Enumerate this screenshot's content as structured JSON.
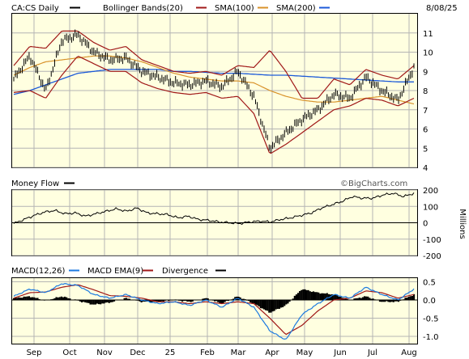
{
  "colors": {
    "panel_bg": "#ffffe0",
    "grid": "#b4b4b4",
    "price": "#000000",
    "bollinger": "#a01818",
    "sma100": "#d8922a",
    "sma200": "#1c5ad8",
    "money_flow": "#000000",
    "macd": "#1c7ae0",
    "macd_ema": "#a01818",
    "divergence": "#000000"
  },
  "header": {
    "ticker": "CA:CS Daily",
    "date": "8/08/25",
    "watermark": "©BigCharts.com"
  },
  "chart_data": [
    {
      "type": "ohlc",
      "panel": "price",
      "title": "CA:CS Daily",
      "legend": [
        "CA:CS Daily",
        "Bollinger Bands(20)",
        "SMA(100)",
        "SMA(200)"
      ],
      "x_labels": [
        "Sep",
        "Oct",
        "Nov",
        "Dec",
        "25",
        "Feb",
        "Mar",
        "Apr",
        "May",
        "Jun",
        "Jul",
        "Aug"
      ],
      "ylim": [
        4,
        12
      ],
      "y_ticks": [
        4,
        5,
        6,
        7,
        8,
        9,
        10,
        11
      ],
      "grid": true,
      "series": [
        {
          "name": "CA:CS Daily",
          "x": [
            "Aug",
            "Sep",
            "Sep",
            "Oct",
            "Oct",
            "Nov",
            "Nov",
            "Dec",
            "Dec",
            "25",
            "Jan",
            "Feb",
            "Feb",
            "Mar",
            "Mar",
            "Apr",
            "Apr",
            "Apr",
            "May",
            "May",
            "Jun",
            "Jun",
            "Jul",
            "Jul",
            "Aug",
            "Aug"
          ],
          "values": [
            8.6,
            9.8,
            8.0,
            10.6,
            10.9,
            10.0,
            9.6,
            9.7,
            9.0,
            8.7,
            8.4,
            8.3,
            8.5,
            8.2,
            9.0,
            7.7,
            5.0,
            5.8,
            6.5,
            7.0,
            7.8,
            7.6,
            8.7,
            8.0,
            7.5,
            9.2
          ]
        },
        {
          "name": "Bollinger Bands(20) upper",
          "values": [
            9.3,
            10.3,
            10.2,
            11.1,
            11.1,
            10.5,
            10.1,
            10.3,
            9.6,
            9.3,
            9.0,
            8.9,
            9.0,
            8.8,
            9.3,
            9.2,
            10.1,
            9.0,
            7.6,
            7.6,
            8.6,
            8.3,
            9.1,
            8.8,
            8.6,
            9.3
          ]
        },
        {
          "name": "Bollinger Bands(20) lower",
          "values": [
            7.9,
            8.0,
            7.6,
            8.8,
            9.8,
            9.4,
            9.0,
            9.0,
            8.4,
            8.1,
            7.9,
            7.8,
            7.9,
            7.6,
            7.7,
            6.8,
            4.7,
            5.2,
            5.8,
            6.4,
            7.0,
            7.2,
            7.6,
            7.5,
            7.2,
            7.6
          ]
        },
        {
          "name": "SMA(100)",
          "values": [
            8.8,
            9.2,
            9.5,
            9.6,
            9.7,
            9.8,
            9.8,
            9.7,
            9.5,
            9.2,
            8.9,
            8.7,
            8.6,
            8.5,
            8.5,
            8.4,
            8.0,
            7.7,
            7.5,
            7.4,
            7.4,
            7.5,
            7.6,
            7.7,
            7.5,
            7.3
          ]
        },
        {
          "name": "SMA(200)",
          "values": [
            7.8,
            8.0,
            8.3,
            8.6,
            8.9,
            9.0,
            9.1,
            9.1,
            9.1,
            9.1,
            9.0,
            9.0,
            8.95,
            8.9,
            8.9,
            8.85,
            8.8,
            8.8,
            8.75,
            8.7,
            8.65,
            8.6,
            8.55,
            8.5,
            8.45,
            8.45
          ]
        }
      ]
    },
    {
      "type": "line",
      "panel": "money_flow",
      "title": "Money Flow",
      "ylim": [
        -200,
        200
      ],
      "y_ticks": [
        -200,
        -100,
        0,
        100,
        200
      ],
      "ylabel": "Millions",
      "series": [
        {
          "name": "Money Flow",
          "values": [
            -5,
            20,
            45,
            65,
            75,
            55,
            60,
            40,
            55,
            70,
            85,
            70,
            90,
            60,
            55,
            50,
            30,
            40,
            20,
            15,
            5,
            0,
            -5,
            5,
            10,
            5,
            20,
            30,
            45,
            60,
            90,
            110,
            130,
            160,
            150,
            150,
            170,
            180,
            160,
            180
          ]
        }
      ]
    },
    {
      "type": "line",
      "panel": "macd",
      "title": "MACD(12,26)",
      "legend": [
        "MACD(12,26)",
        "MACD EMA(9)",
        "Divergence"
      ],
      "ylim": [
        -1.2,
        0.6
      ],
      "y_ticks": [
        -1.0,
        -0.5,
        0.0,
        0.5
      ],
      "series": [
        {
          "name": "MACD(12,26)",
          "values": [
            0.1,
            0.3,
            0.2,
            0.45,
            0.4,
            0.15,
            0.05,
            0.15,
            0.0,
            -0.1,
            -0.05,
            -0.15,
            0.0,
            -0.2,
            0.05,
            -0.2,
            -0.85,
            -1.1,
            -0.4,
            -0.1,
            0.15,
            0.05,
            0.35,
            0.15,
            0.0,
            0.3
          ]
        },
        {
          "name": "MACD EMA(9)",
          "values": [
            0.05,
            0.2,
            0.22,
            0.35,
            0.42,
            0.28,
            0.12,
            0.1,
            0.05,
            -0.05,
            -0.05,
            -0.1,
            -0.05,
            -0.1,
            -0.05,
            -0.1,
            -0.5,
            -0.95,
            -0.7,
            -0.3,
            0.0,
            0.05,
            0.25,
            0.2,
            0.05,
            0.15
          ]
        },
        {
          "name": "Divergence",
          "values": [
            0.05,
            0.1,
            -0.02,
            0.1,
            -0.02,
            -0.13,
            -0.07,
            0.05,
            -0.05,
            -0.05,
            0.0,
            -0.05,
            0.05,
            -0.1,
            0.1,
            -0.1,
            -0.35,
            -0.15,
            0.3,
            0.2,
            0.15,
            0.0,
            0.1,
            -0.05,
            -0.05,
            0.15
          ]
        }
      ]
    }
  ]
}
